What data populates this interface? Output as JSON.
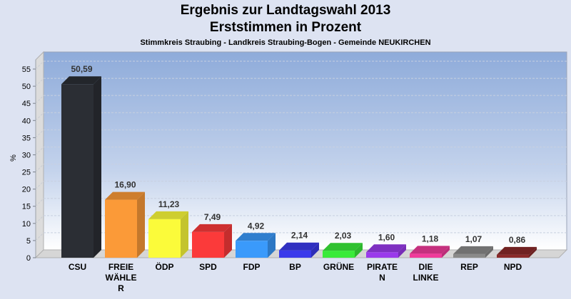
{
  "chart_data": {
    "type": "bar",
    "title": "Ergebnis zur Landtagswahl 2013",
    "subtitle": "Erststimmen in Prozent",
    "caption": "Stimmkreis Straubing - Landkreis Straubing-Bogen - Gemeinde NEUKIRCHEN",
    "xlabel": "",
    "ylabel": "%",
    "ylim": [
      0,
      55
    ],
    "yticks": [
      "0",
      "5",
      "10",
      "15",
      "20",
      "25",
      "30",
      "35",
      "40",
      "45",
      "50",
      "55"
    ],
    "grid": true,
    "categories": [
      "CSU",
      "FREIE WÄHLER",
      "ÖDP",
      "SPD",
      "FDP",
      "BP",
      "GRÜNE",
      "PIRATEN",
      "DIE LINKE",
      "REP",
      "NPD"
    ],
    "category_display": [
      [
        "CSU"
      ],
      [
        "FREIE",
        "WÄHLE",
        "R"
      ],
      [
        "ÖDP"
      ],
      [
        "SPD"
      ],
      [
        "FDP"
      ],
      [
        "BP"
      ],
      [
        "GRÜNE"
      ],
      [
        "PIRATE",
        "N"
      ],
      [
        "DIE",
        "LINKE"
      ],
      [
        "REP"
      ],
      [
        "NPD"
      ]
    ],
    "values": [
      50.59,
      16.9,
      11.23,
      7.49,
      4.92,
      2.14,
      2.03,
      1.6,
      1.18,
      1.07,
      0.86
    ],
    "value_labels": [
      "50,59",
      "16,90",
      "11,23",
      "7,49",
      "4,92",
      "2,14",
      "2,03",
      "1,60",
      "1,18",
      "1,07",
      "0,86"
    ],
    "colors": [
      "#2b2e34",
      "#fb9a38",
      "#fbfb3a",
      "#fb3a3a",
      "#3a9afb",
      "#3a3aeb",
      "#3aeb3a",
      "#9a3aeb",
      "#f03a9a",
      "#8a8a8a",
      "#8a2a2a"
    ]
  }
}
